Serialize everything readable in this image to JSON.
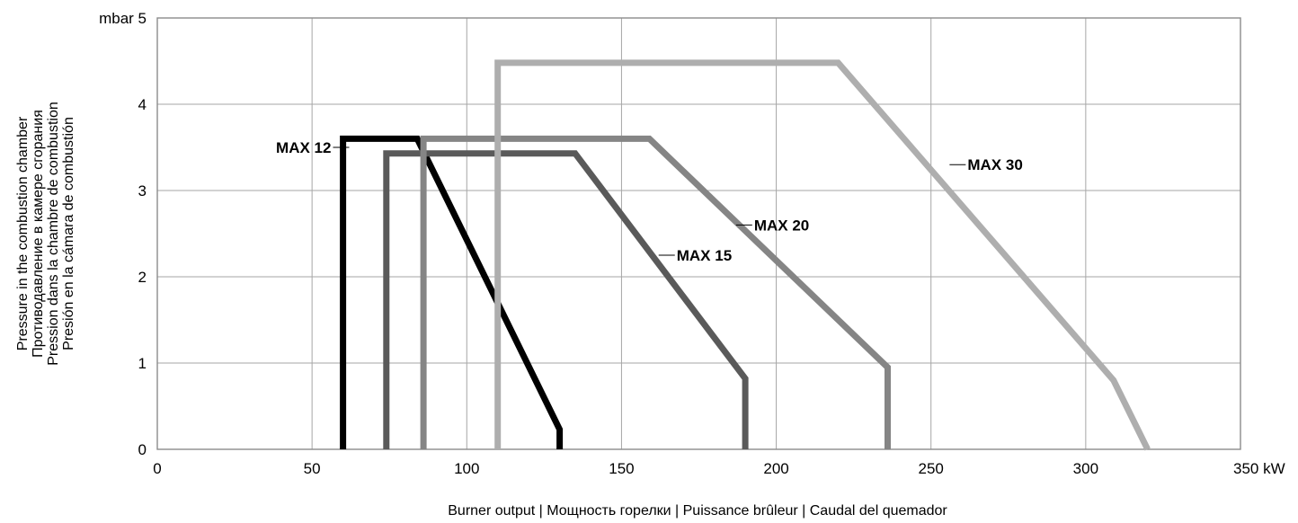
{
  "chart_data": {
    "type": "line",
    "xlim": [
      0,
      350
    ],
    "ylim": [
      0,
      5
    ],
    "x_ticks": [
      0,
      50,
      100,
      150,
      200,
      250,
      300,
      350
    ],
    "y_ticks": [
      0,
      1,
      2,
      3,
      4,
      5
    ],
    "x_tick_labels": [
      "0",
      "50",
      "100",
      "150",
      "200",
      "250",
      "300",
      "350 kW"
    ],
    "y_tick_labels": [
      "0",
      "1",
      "2",
      "3",
      "4",
      "mbar 5"
    ],
    "xlabel": "Burner output | Мощность горелки | Puissance brûleur | Caudal del quemador",
    "ylabel_lines": [
      "Pressure in the combustion chamber",
      "Противодавление в камере сгорания",
      "Pression dans la chambre de combustion",
      "Presión en la cámara de combustión"
    ],
    "grid": true,
    "series": [
      {
        "name": "MAX 12",
        "color": "#000000",
        "points": [
          [
            60,
            0
          ],
          [
            60,
            3.6
          ],
          [
            84,
            3.6
          ],
          [
            130,
            0.23
          ],
          [
            130,
            0
          ]
        ],
        "label_anchor": [
          62,
          3.5
        ],
        "label_side": "left"
      },
      {
        "name": "MAX 15",
        "color": "#5a5a5a",
        "points": [
          [
            74,
            0
          ],
          [
            74,
            3.43
          ],
          [
            135,
            3.43
          ],
          [
            190,
            0.82
          ],
          [
            190,
            0
          ]
        ],
        "label_anchor": [
          162,
          2.25
        ],
        "label_side": "right"
      },
      {
        "name": "MAX 20",
        "color": "#858585",
        "points": [
          [
            86,
            0
          ],
          [
            86,
            3.6
          ],
          [
            159,
            3.6
          ],
          [
            236,
            0.95
          ],
          [
            236,
            0
          ]
        ],
        "label_anchor": [
          187,
          2.6
        ],
        "label_side": "right"
      },
      {
        "name": "MAX 30",
        "color": "#aeaeae",
        "points": [
          [
            110,
            0
          ],
          [
            110,
            4.48
          ],
          [
            220,
            4.48
          ],
          [
            309,
            0.8
          ],
          [
            320,
            0
          ]
        ],
        "label_anchor": [
          256,
          3.3
        ],
        "label_side": "right"
      }
    ]
  }
}
